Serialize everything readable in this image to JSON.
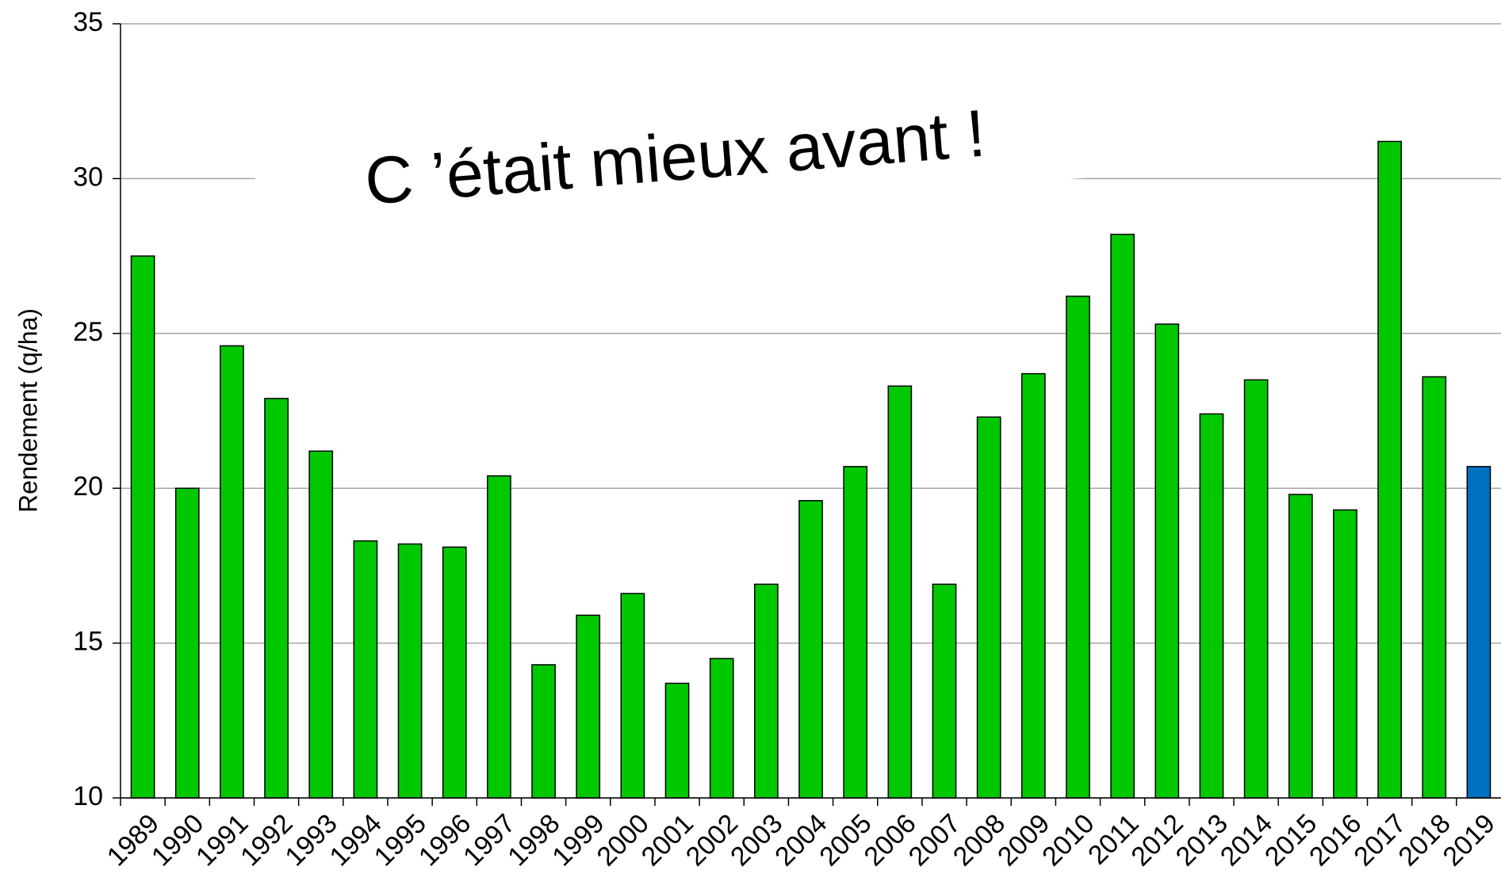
{
  "chart_data": {
    "type": "bar",
    "y_label": "Rendement (q/ha)",
    "annotation": "C ’était mieux avant !",
    "annotation_color": "#ffc000",
    "categories": [
      "1989",
      "1990",
      "1991",
      "1992",
      "1993",
      "1994",
      "1995",
      "1996",
      "1997",
      "1998",
      "1999",
      "2000",
      "2001",
      "2002",
      "2003",
      "2004",
      "2005",
      "2006",
      "2007",
      "2008",
      "2009",
      "2010",
      "2011",
      "2012",
      "2013",
      "2014",
      "2015",
      "2016",
      "2017",
      "2018",
      "2019"
    ],
    "values": [
      27.5,
      20.0,
      24.6,
      22.9,
      21.2,
      18.3,
      18.2,
      18.1,
      20.4,
      14.3,
      15.9,
      16.6,
      13.7,
      14.5,
      16.9,
      19.6,
      20.7,
      23.3,
      16.9,
      22.3,
      23.7,
      26.2,
      28.2,
      25.3,
      22.4,
      23.5,
      19.8,
      19.3,
      31.2,
      23.6,
      20.7
    ],
    "colors": [
      "#00c800",
      "#00c800",
      "#00c800",
      "#00c800",
      "#00c800",
      "#00c800",
      "#00c800",
      "#00c800",
      "#00c800",
      "#00c800",
      "#00c800",
      "#00c800",
      "#00c800",
      "#00c800",
      "#00c800",
      "#00c800",
      "#00c800",
      "#00c800",
      "#00c800",
      "#00c800",
      "#00c800",
      "#00c800",
      "#00c800",
      "#00c800",
      "#00c800",
      "#00c800",
      "#00c800",
      "#00c800",
      "#00c800",
      "#00c800",
      "#0070c0"
    ],
    "ylim": [
      10,
      35
    ],
    "yticks": [
      10,
      15,
      20,
      25,
      30,
      35
    ],
    "grid": true
  }
}
